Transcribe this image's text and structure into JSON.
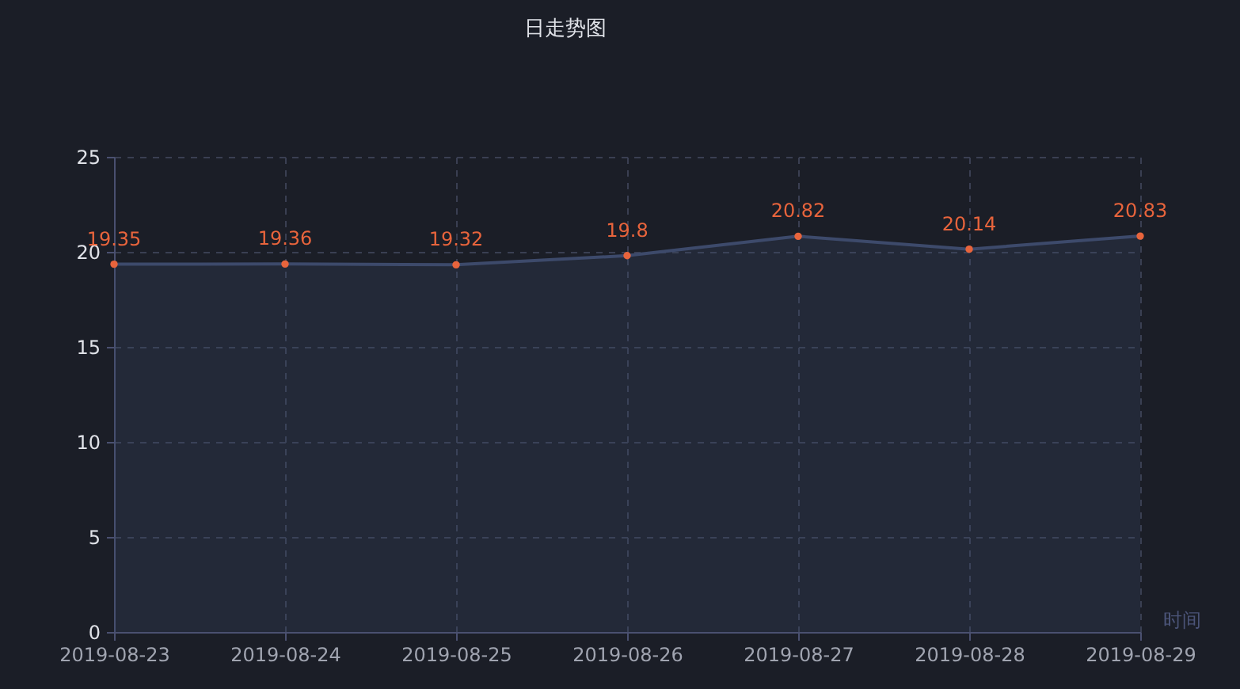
{
  "chart_data": {
    "type": "area",
    "title": "日走势图",
    "xlabel": "时间",
    "categories": [
      "2019-08-23",
      "2019-08-24",
      "2019-08-25",
      "2019-08-26",
      "2019-08-27",
      "2019-08-28",
      "2019-08-29"
    ],
    "series": [
      {
        "color": "#3d4a6b",
        "values": [
          19.35,
          19.36,
          19.32,
          19.8,
          20.82,
          20.14,
          20.83
        ]
      }
    ],
    "ylim": [
      0,
      25
    ],
    "yticks": [
      0,
      5,
      10,
      15,
      20,
      25
    ],
    "grid": true,
    "marker": "circle",
    "data_labels": true
  }
}
